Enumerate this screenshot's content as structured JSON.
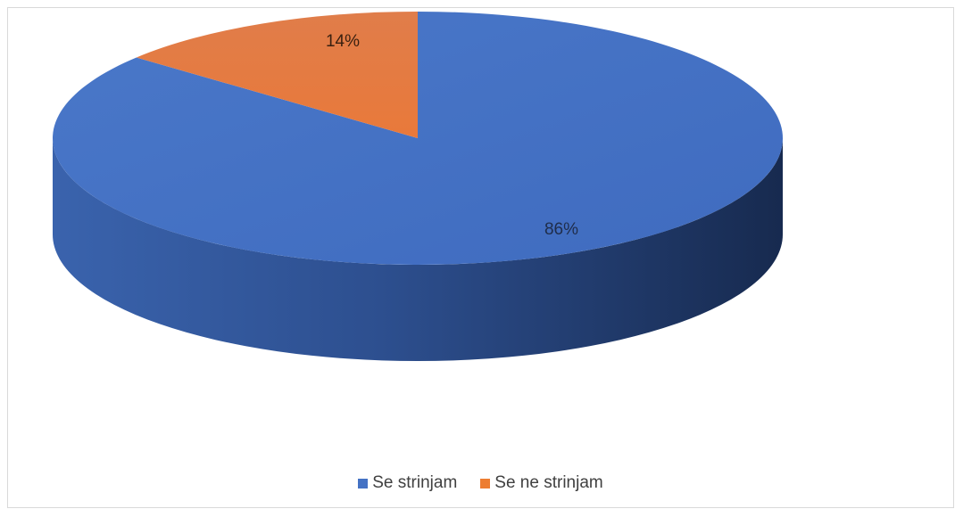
{
  "chart_data": {
    "type": "pie",
    "style": "3d",
    "categories": [
      "Se strinjam",
      "Se ne strinjam"
    ],
    "values": [
      86,
      14
    ],
    "labels": [
      "86%",
      "14%"
    ],
    "colors": [
      "#4472c4",
      "#ed7d31"
    ],
    "title": "",
    "legend_position": "bottom"
  },
  "legend": {
    "items": [
      {
        "label": "Se strinjam",
        "color": "#4472c4"
      },
      {
        "label": "Se ne strinjam",
        "color": "#ed7d31"
      }
    ]
  }
}
